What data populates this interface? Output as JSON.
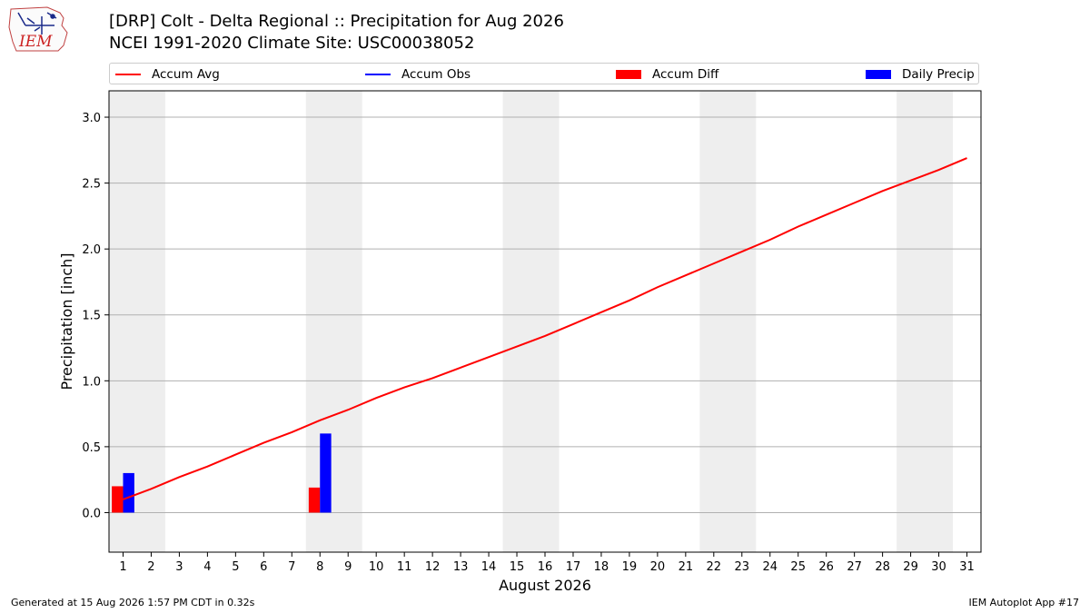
{
  "header": {
    "title_line1": "[DRP] Colt - Delta Regional :: Precipitation for Aug 2026",
    "title_line2": "NCEI 1991-2020 Climate Site: USC00038052",
    "logo_text": "IEM"
  },
  "legend": {
    "items": [
      {
        "label": "Accum Avg",
        "color": "#ff0000",
        "kind": "line"
      },
      {
        "label": "Accum Obs",
        "color": "#0000ff",
        "kind": "line"
      },
      {
        "label": "Accum Diff",
        "color": "#ff0000",
        "kind": "box"
      },
      {
        "label": "Daily Precip",
        "color": "#0000ff",
        "kind": "box"
      }
    ]
  },
  "footer": {
    "left": "Generated at 15 Aug 2026 1:57 PM CDT in 0.32s",
    "right": "IEM Autoplot App #17"
  },
  "chart_data": {
    "type": "line",
    "xlabel": "August 2026",
    "ylabel": "Precipitation [inch]",
    "xlim": [
      0.5,
      31.5
    ],
    "ylim": [
      -0.3,
      3.2
    ],
    "yticks": [
      0.0,
      0.5,
      1.0,
      1.5,
      2.0,
      2.5,
      3.0
    ],
    "ytick_labels": [
      "0.0",
      "0.5",
      "1.0",
      "1.5",
      "2.0",
      "2.5",
      "3.0"
    ],
    "x": [
      1,
      2,
      3,
      4,
      5,
      6,
      7,
      8,
      9,
      10,
      11,
      12,
      13,
      14,
      15,
      16,
      17,
      18,
      19,
      20,
      21,
      22,
      23,
      24,
      25,
      26,
      27,
      28,
      29,
      30,
      31
    ],
    "x_labels": [
      "1",
      "2",
      "3",
      "4",
      "5",
      "6",
      "7",
      "8",
      "9",
      "10",
      "11",
      "12",
      "13",
      "14",
      "15",
      "16",
      "17",
      "18",
      "19",
      "20",
      "21",
      "22",
      "23",
      "24",
      "25",
      "26",
      "27",
      "28",
      "29",
      "30",
      "31"
    ],
    "grid": "horizontal",
    "weekend_shading": [
      [
        0.5,
        2.5
      ],
      [
        7.5,
        9.5
      ],
      [
        14.5,
        16.5
      ],
      [
        21.5,
        23.5
      ],
      [
        28.5,
        30.5
      ]
    ],
    "weekend_color": "#eeeeee",
    "series": [
      {
        "name": "Accum Avg",
        "kind": "line",
        "color": "#ff0000",
        "values": [
          0.1,
          0.18,
          0.27,
          0.35,
          0.44,
          0.53,
          0.61,
          0.7,
          0.78,
          0.87,
          0.95,
          1.02,
          1.1,
          1.18,
          1.26,
          1.34,
          1.43,
          1.52,
          1.61,
          1.71,
          1.8,
          1.89,
          1.98,
          2.07,
          2.17,
          2.26,
          2.35,
          2.44,
          2.52,
          2.6,
          2.69
        ]
      },
      {
        "name": "Accum Diff",
        "kind": "bar",
        "color": "#ff0000",
        "points": [
          {
            "x": 1,
            "value": 0.2
          },
          {
            "x": 8,
            "value": 0.19
          }
        ]
      },
      {
        "name": "Daily Precip",
        "kind": "bar",
        "color": "#0000ff",
        "points": [
          {
            "x": 1,
            "value": 0.3
          },
          {
            "x": 8,
            "value": 0.6
          }
        ]
      }
    ]
  }
}
